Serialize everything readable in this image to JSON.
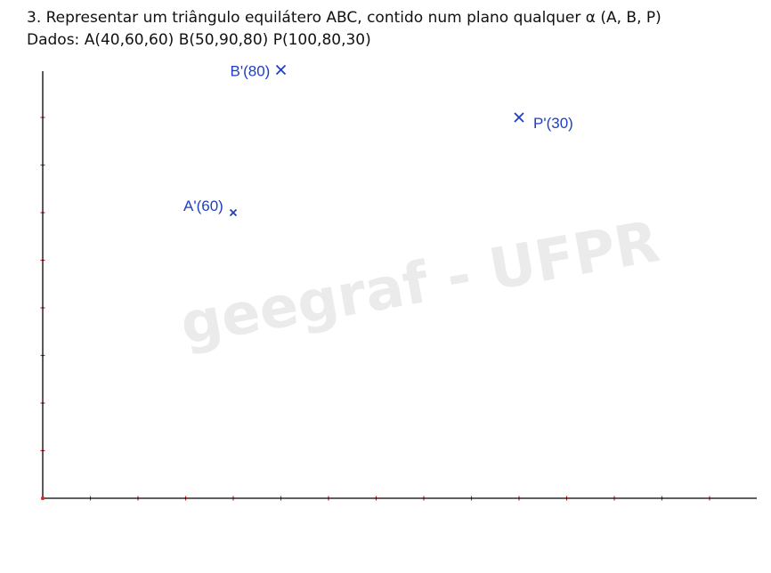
{
  "heading": {
    "line1": "3. Representar um triângulo equilátero ABC, contido num plano qualquer α (A, B, P)",
    "line2": "Dados: A(40,60,60)  B(50,90,80)  P(100,80,30)"
  },
  "watermark": "geegraf - UFPR",
  "colors": {
    "axis": "#000000",
    "tick": "#e02020",
    "point": "#1f3fbf",
    "watermark": "#ebebeb"
  },
  "axes": {
    "x_range": [
      0,
      145
    ],
    "y_range": [
      0,
      100
    ],
    "tick_step": 10
  },
  "points": [
    {
      "id": "A",
      "label": "A'(60)",
      "x": 40,
      "y": 60
    },
    {
      "id": "B",
      "label": "B'(80)",
      "x": 50,
      "y": 90
    },
    {
      "id": "P",
      "label": "P'(30)",
      "x": 100,
      "y": 80
    }
  ]
}
